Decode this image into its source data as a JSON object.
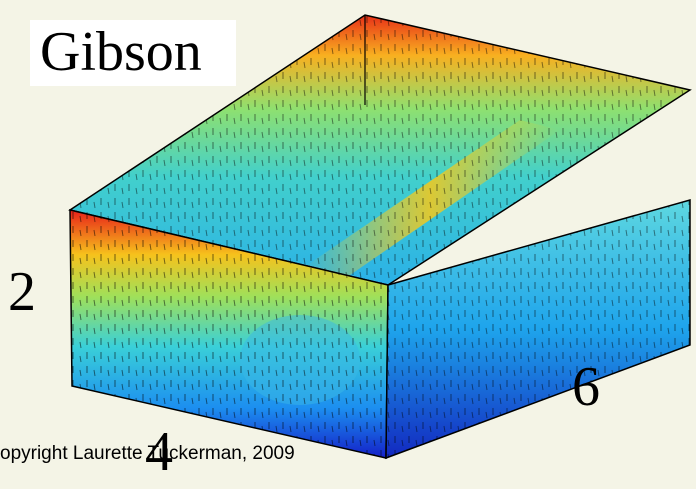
{
  "title": "Gibson",
  "dimensions": {
    "height": "2",
    "depth": "4",
    "length": "6"
  },
  "copyright": "opyright Laurette Tuckerman, 2009"
}
